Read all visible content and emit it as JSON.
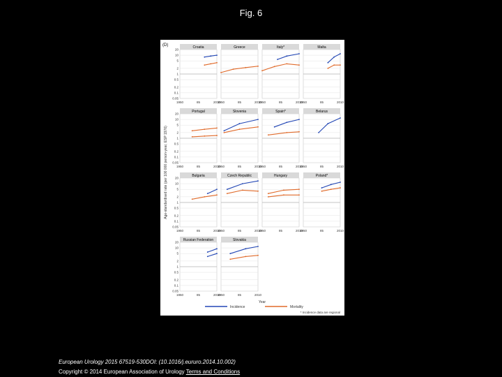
{
  "header": {
    "title": "Fig. 6"
  },
  "footer": {
    "citation": "European Urology 2015 67519-530DOI: (10.1016/j.eururo.2014.10.002)",
    "copyright_text": "Copyright © 2014 European Association of Urology",
    "terms_link": "Terms and Conditions"
  },
  "colors": {
    "incidence": "#2347b5",
    "mortality": "#e06a2a",
    "background": "#000000",
    "figure_bg": "#ffffff"
  },
  "chart_data": {
    "type": "line",
    "panel_label": "(D)",
    "ylabel": "Age-standardised rate (per 100 000 person-year, ESP 1976)",
    "xlabel": "Year",
    "yscale": "log",
    "yticks": [
      "20",
      "10",
      "5",
      "2",
      "1",
      "0.5",
      "0.2",
      "0.1",
      "0.05"
    ],
    "ytick_values": [
      20,
      10,
      5,
      2,
      1,
      0.5,
      0.2,
      0.1,
      0.05
    ],
    "ylim": [
      0.05,
      20
    ],
    "xlim": [
      1950,
      2010
    ],
    "xticks": [
      "1950",
      "85",
      "2010"
    ],
    "legend": {
      "incidence": "Incidence",
      "mortality": "Mortality",
      "note": "* Incidence data are regional"
    },
    "panels": [
      {
        "name": "Croatia",
        "series": [
          {
            "type": "incidence",
            "label": "",
            "points": [
              [
                1990,
                8
              ],
              [
                2000,
                9
              ],
              [
                2010,
                10
              ]
            ]
          },
          {
            "type": "mortality",
            "label": "",
            "points": [
              [
                1990,
                3
              ],
              [
                2000,
                3.5
              ],
              [
                2010,
                4
              ]
            ]
          }
        ]
      },
      {
        "name": "Greece",
        "series": [
          {
            "type": "mortality",
            "label": "",
            "points": [
              [
                1950,
                1.2
              ],
              [
                1970,
                1.8
              ],
              [
                1990,
                2.2
              ],
              [
                2010,
                2.6
              ]
            ]
          }
        ]
      },
      {
        "name": "Italy*",
        "series": [
          {
            "type": "incidence",
            "label": "",
            "points": [
              [
                1975,
                6
              ],
              [
                1990,
                9
              ],
              [
                2010,
                12
              ]
            ]
          },
          {
            "type": "mortality",
            "label": "",
            "points": [
              [
                1950,
                1.5
              ],
              [
                1970,
                2.5
              ],
              [
                1990,
                3.5
              ],
              [
                2010,
                3
              ]
            ]
          }
        ]
      },
      {
        "name": "Malta",
        "series": [
          {
            "type": "incidence",
            "label": "",
            "points": [
              [
                1990,
                4
              ],
              [
                2000,
                8
              ],
              [
                2010,
                12
              ]
            ]
          },
          {
            "type": "mortality",
            "label": "",
            "points": [
              [
                1990,
                2
              ],
              [
                2000,
                3
              ],
              [
                2010,
                3
              ]
            ]
          }
        ]
      },
      {
        "name": "Portugal",
        "series": [
          {
            "type": "mortality",
            "label": "",
            "points": [
              [
                1970,
                2.5
              ],
              [
                1990,
                3
              ],
              [
                2010,
                3.5
              ]
            ]
          },
          {
            "type": "mortality",
            "label": "",
            "points": [
              [
                1970,
                1.2
              ],
              [
                1990,
                1.3
              ],
              [
                2010,
                1.4
              ]
            ]
          }
        ]
      },
      {
        "name": "Slovenia",
        "series": [
          {
            "type": "incidence",
            "label": "",
            "points": [
              [
                1955,
                2.5
              ],
              [
                1980,
                6
              ],
              [
                2010,
                10
              ]
            ]
          },
          {
            "type": "mortality",
            "label": "",
            "points": [
              [
                1955,
                2
              ],
              [
                1980,
                3
              ],
              [
                2010,
                4
              ]
            ]
          }
        ]
      },
      {
        "name": "Spain*",
        "series": [
          {
            "type": "incidence",
            "label": "",
            "points": [
              [
                1970,
                4
              ],
              [
                1990,
                7
              ],
              [
                2010,
                10
              ]
            ]
          },
          {
            "type": "mortality",
            "label": "",
            "points": [
              [
                1960,
                1.5
              ],
              [
                1990,
                2
              ],
              [
                2010,
                2.2
              ]
            ]
          }
        ]
      },
      {
        "name": "Belarus",
        "series": [
          {
            "type": "incidence",
            "label": "",
            "points": [
              [
                1975,
                2
              ],
              [
                1990,
                6
              ],
              [
                2010,
                12
              ]
            ]
          }
        ]
      },
      {
        "name": "Bulgaria",
        "series": [
          {
            "type": "mortality",
            "label": "",
            "points": [
              [
                1970,
                1.5
              ],
              [
                1990,
                2
              ],
              [
                2010,
                2.5
              ]
            ]
          },
          {
            "type": "incidence",
            "label": "",
            "points": [
              [
                1995,
                3
              ],
              [
                2010,
                5
              ]
            ]
          }
        ]
      },
      {
        "name": "Czech Republic",
        "series": [
          {
            "type": "incidence",
            "label": "",
            "points": [
              [
                1960,
                5
              ],
              [
                1985,
                10
              ],
              [
                2010,
                14
              ]
            ]
          },
          {
            "type": "mortality",
            "label": "",
            "points": [
              [
                1960,
                3
              ],
              [
                1985,
                4.5
              ],
              [
                2010,
                4
              ]
            ]
          }
        ]
      },
      {
        "name": "Hungary",
        "series": [
          {
            "type": "mortality",
            "label": "",
            "points": [
              [
                1960,
                3
              ],
              [
                1985,
                4.5
              ],
              [
                2010,
                5
              ]
            ]
          },
          {
            "type": "mortality",
            "label": "",
            "points": [
              [
                1960,
                2
              ],
              [
                1985,
                2.5
              ],
              [
                2010,
                2.5
              ]
            ]
          }
        ]
      },
      {
        "name": "Poland*",
        "series": [
          {
            "type": "incidence",
            "label": "",
            "points": [
              [
                1980,
                6
              ],
              [
                1995,
                9
              ],
              [
                2010,
                12
              ]
            ]
          },
          {
            "type": "mortality",
            "label": "",
            "points": [
              [
                1980,
                4
              ],
              [
                1995,
                5
              ],
              [
                2010,
                6
              ]
            ]
          }
        ]
      },
      {
        "name": "Russian Federation",
        "series": [
          {
            "type": "incidence",
            "label": "",
            "points": [
              [
                1995,
                6
              ],
              [
                2010,
                9
              ]
            ]
          },
          {
            "type": "incidence",
            "label": "",
            "points": [
              [
                1995,
                3.5
              ],
              [
                2010,
                5
              ]
            ]
          }
        ]
      },
      {
        "name": "Slovakia",
        "series": [
          {
            "type": "incidence",
            "label": "",
            "points": [
              [
                1965,
                5
              ],
              [
                1990,
                9
              ],
              [
                2010,
                12
              ]
            ]
          },
          {
            "type": "mortality",
            "label": "",
            "points": [
              [
                1965,
                2.5
              ],
              [
                1990,
                3.5
              ],
              [
                2010,
                4
              ]
            ]
          }
        ]
      }
    ]
  }
}
